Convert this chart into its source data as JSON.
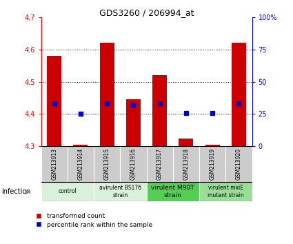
{
  "title": "GDS3260 / 206994_at",
  "samples": [
    "GSM213913",
    "GSM213914",
    "GSM213915",
    "GSM213916",
    "GSM213917",
    "GSM213918",
    "GSM213919",
    "GSM213920"
  ],
  "transformed_counts": [
    4.58,
    4.305,
    4.62,
    4.445,
    4.52,
    4.325,
    4.305,
    4.62
  ],
  "percentile_ranks": [
    33,
    25,
    33,
    32,
    33,
    26,
    26,
    33
  ],
  "ylim_left": [
    4.3,
    4.7
  ],
  "ylim_right": [
    0,
    100
  ],
  "yticks_left": [
    4.3,
    4.4,
    4.5,
    4.6,
    4.7
  ],
  "yticks_right": [
    0,
    25,
    50,
    75,
    100
  ],
  "ytick_right_labels": [
    "0",
    "25",
    "50",
    "75",
    "100%"
  ],
  "bar_color": "#cc0000",
  "dot_color": "#0000cc",
  "bar_bottom": 4.3,
  "group_spans": [
    [
      0,
      1,
      "control",
      "#d9f0d9"
    ],
    [
      2,
      3,
      "avirulent BS176\nstrain",
      "#d9f0d9"
    ],
    [
      4,
      5,
      "virulent M90T\nstrain",
      "#66cc66"
    ],
    [
      6,
      7,
      "virulent mxiE\nmutant strain",
      "#66cc66"
    ]
  ],
  "infection_label": "infection",
  "legend_red": "transformed count",
  "legend_blue": "percentile rank within the sample",
  "bg_color": "#ffffff",
  "plot_bg": "#ffffff",
  "sample_bg": "#cccccc",
  "virulent_m90t_color": "#55cc55",
  "virulent_mxie_color": "#99dd99"
}
